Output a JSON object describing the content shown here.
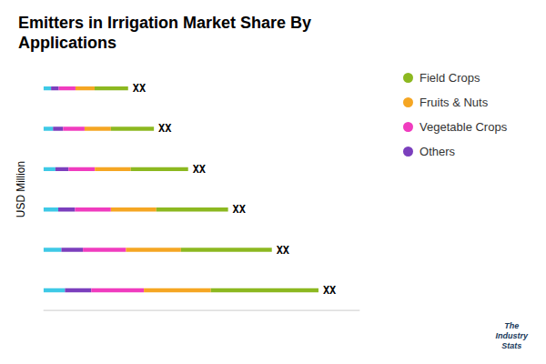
{
  "chart_data": {
    "type": "bar",
    "orientation": "horizontal",
    "stacked": true,
    "title": "Emitters in Irrigation Market Share By\nApplications",
    "ylabel": "USD Million",
    "categories": [
      null,
      null,
      null,
      null,
      null,
      null
    ],
    "series": [
      {
        "name": null,
        "color": "#3ec9e6",
        "values": [
          0.9,
          0.75,
          0.62,
          0.5,
          0.4,
          0.32
        ]
      },
      {
        "name": "Others",
        "color": "#7b3fbd",
        "values": [
          1.1,
          0.9,
          0.7,
          0.55,
          0.42,
          0.32
        ]
      },
      {
        "name": "Vegetable Crops",
        "color": "#f03cbf",
        "values": [
          2.2,
          1.8,
          1.5,
          1.1,
          0.9,
          0.7
        ]
      },
      {
        "name": "Fruits & Nuts",
        "color": "#f5a623",
        "values": [
          2.8,
          2.3,
          1.9,
          1.5,
          1.1,
          0.8
        ]
      },
      {
        "name": "Field Crops",
        "color": "#8cb820",
        "values": [
          4.5,
          3.8,
          3.0,
          2.4,
          1.8,
          1.4
        ]
      }
    ],
    "total_labels": [
      "XX",
      "XX",
      "XX",
      "XX",
      "XX",
      "XX"
    ],
    "xlim": [
      0,
      13.225
    ],
    "tick_labels": false,
    "legend": "right",
    "annotations": [
      "The\nIndustry\nStats"
    ]
  }
}
